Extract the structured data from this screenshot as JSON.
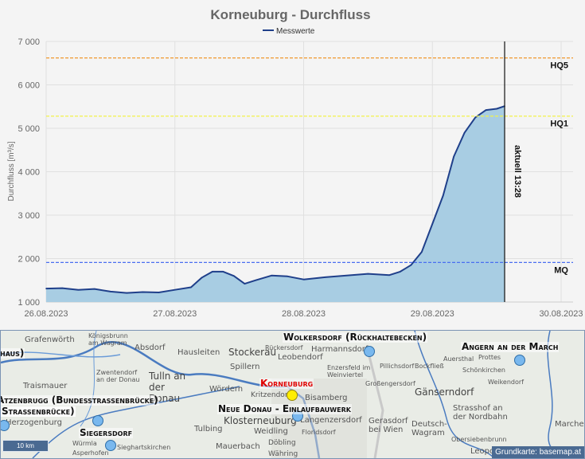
{
  "chart_data": {
    "type": "area",
    "title": "Korneuburg - Durchfluss",
    "ylabel": "Durchfluss [m³/s]",
    "xlabel": "",
    "legend": {
      "position": "top",
      "entries": [
        "Messwerte"
      ]
    },
    "ylim": [
      1000,
      7000
    ],
    "yticks": [
      "1 000",
      "2 000",
      "3 000",
      "4 000",
      "5 000",
      "6 000",
      "7 000"
    ],
    "ytick_values": [
      1000,
      2000,
      3000,
      4000,
      5000,
      6000,
      7000
    ],
    "xlim": [
      "26.08.2023 00:00",
      "30.08.2023 00:00"
    ],
    "xticks": [
      "26.08.2023",
      "27.08.2023",
      "28.08.2023",
      "29.08.2023",
      "30.08.2023"
    ],
    "grid": true,
    "series": [
      {
        "name": "Messwerte",
        "color": "#1f3f8a",
        "fill": "#a8cde3",
        "x": [
          "26.08.2023 00:00",
          "26.08.2023 03:00",
          "26.08.2023 06:00",
          "26.08.2023 09:00",
          "26.08.2023 12:00",
          "26.08.2023 15:00",
          "26.08.2023 18:00",
          "26.08.2023 21:00",
          "27.08.2023 00:00",
          "27.08.2023 03:00",
          "27.08.2023 05:00",
          "27.08.2023 07:00",
          "27.08.2023 09:00",
          "27.08.2023 11:00",
          "27.08.2023 13:00",
          "27.08.2023 15:00",
          "27.08.2023 18:00",
          "27.08.2023 21:00",
          "28.08.2023 00:00",
          "28.08.2023 04:00",
          "28.08.2023 08:00",
          "28.08.2023 12:00",
          "28.08.2023 16:00",
          "28.08.2023 18:00",
          "28.08.2023 20:00",
          "28.08.2023 22:00",
          "29.08.2023 00:00",
          "29.08.2023 02:00",
          "29.08.2023 04:00",
          "29.08.2023 06:00",
          "29.08.2023 08:00",
          "29.08.2023 10:00",
          "29.08.2023 12:00",
          "29.08.2023 13:28"
        ],
        "y": [
          1310,
          1320,
          1280,
          1300,
          1240,
          1210,
          1230,
          1220,
          1280,
          1340,
          1560,
          1700,
          1700,
          1600,
          1420,
          1500,
          1610,
          1590,
          1520,
          1570,
          1610,
          1650,
          1620,
          1700,
          1850,
          2150,
          2800,
          3450,
          4350,
          4900,
          5250,
          5420,
          5450,
          5510
        ]
      }
    ],
    "reference_lines": [
      {
        "label": "HQ5",
        "value": 6620,
        "color": "#f0a040"
      },
      {
        "label": "HQ1",
        "value": 5280,
        "color": "#f2f24a"
      },
      {
        "label": "MQ",
        "value": 1910,
        "color": "#4a6ef0"
      }
    ],
    "current_marker": {
      "label": "aktuell 13:28",
      "x": "29.08.2023 13:28",
      "color": "#111111"
    }
  },
  "map": {
    "stations": [
      {
        "name": "Wolkersdorf (Rückhaltebecken)",
        "current": false
      },
      {
        "name": "Angern an der March",
        "current": false
      },
      {
        "name": "Korneuburg",
        "current": true
      },
      {
        "name": "Neue Donau - Einlaufbauwerk",
        "current": false
      },
      {
        "name": "Atzenbrugg (Bundesstrassenbrücke)",
        "current": false
      },
      {
        "name": "Siegersdorf",
        "current": false
      },
      {
        "name": "haus)",
        "current": false
      },
      {
        "name": "Strassenbrücke)",
        "current": false
      }
    ],
    "places": [
      "Grafenwörth",
      "Königsbrunn am Wagram",
      "Absdorf",
      "Hausleiten",
      "Stockerau",
      "Spillern",
      "Tulln an der Donau",
      "Zwentendorf an der Donau",
      "Traismauer",
      "Wördern",
      "Kritzendorf",
      "Klosterneuburg",
      "Weidling",
      "Tulbing",
      "Mauerbach",
      "Döbling",
      "Währing",
      "Bisamberg",
      "Langenzersdorf",
      "Floridsdorf",
      "Gerasdorf bei Wien",
      "Deutsch-Wagram",
      "Leobendorf",
      "Harmannsdorf",
      "Rückersdorf",
      "Enzersfeld im Weinviertel",
      "Großengersdorf",
      "Pillichsdorf",
      "Bockfließ",
      "Auersthal",
      "Schönkirchen",
      "Gänserndorf",
      "Strasshof an der Nordbahn",
      "Obersiebenbrunn",
      "Prottes",
      "Weikendorf",
      "Marchegg",
      "Herzogenburg",
      "Würmla",
      "Asperhofen",
      "Sieghartskirchen",
      "Leopoldsdorf"
    ],
    "scale_label": "10 km",
    "attribution": "Grundkarte: basemap.at"
  }
}
